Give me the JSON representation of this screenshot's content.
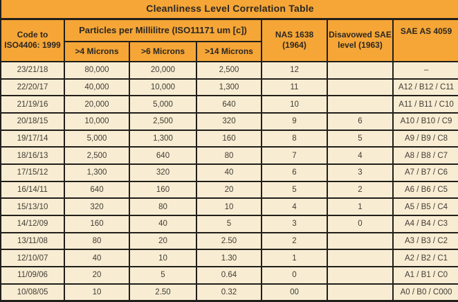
{
  "title": "Cleanliness Level Correlation Table",
  "colors": {
    "header_bg": "#f5a637",
    "row_bg": "#f8edd3",
    "border": "#211e1a",
    "header_text": "#2c2722",
    "body_text": "#423c33"
  },
  "header": {
    "code": "Code to\nISO4406: 1999",
    "particles_group": "Particles per Millilitre (ISO11171 um [c])",
    "sub": [
      ">4 Microns",
      ">6 Microns",
      ">14 Microns"
    ],
    "nas": "NAS 1638\n(1964)",
    "sae_level": "Disavowed SAE\nlevel (1963)",
    "sae_as4059": "SAE AS 4059"
  },
  "chart_data": {
    "type": "table",
    "title": "Cleanliness Level Correlation Table",
    "columns": [
      "Code to ISO4406: 1999",
      ">4 Microns",
      ">6 Microns",
      ">14 Microns",
      "NAS 1638 (1964)",
      "Disavowed SAE level (1963)",
      "SAE AS 4059"
    ],
    "column_group": {
      "label": "Particles per Millilitre (ISO11171 um [c])",
      "spans_columns": [
        ">4 Microns",
        ">6 Microns",
        ">14 Microns"
      ]
    },
    "rows": [
      {
        "code": "23/21/18",
        "p4": "80,000",
        "p6": "20,000",
        "p14": "2,500",
        "nas": "12",
        "sae_level": "",
        "sae4059": "–"
      },
      {
        "code": "22/20/17",
        "p4": "40,000",
        "p6": "10,000",
        "p14": "1,300",
        "nas": "11",
        "sae_level": "",
        "sae4059": "A12 / B12 / C11"
      },
      {
        "code": "21/19/16",
        "p4": "20,000",
        "p6": "5,000",
        "p14": "640",
        "nas": "10",
        "sae_level": "",
        "sae4059": "A11 / B11 / C10"
      },
      {
        "code": "20/18/15",
        "p4": "10,000",
        "p6": "2,500",
        "p14": "320",
        "nas": "9",
        "sae_level": "6",
        "sae4059": "A10 / B10 / C9"
      },
      {
        "code": "19/17/14",
        "p4": "5,000",
        "p6": "1,300",
        "p14": "160",
        "nas": "8",
        "sae_level": "5",
        "sae4059": "A9 / B9 / C8"
      },
      {
        "code": "18/16/13",
        "p4": "2,500",
        "p6": "640",
        "p14": "80",
        "nas": "7",
        "sae_level": "4",
        "sae4059": "A8 / B8 / C7"
      },
      {
        "code": "17/15/12",
        "p4": "1,300",
        "p6": "320",
        "p14": "40",
        "nas": "6",
        "sae_level": "3",
        "sae4059": "A7 / B7 / C6"
      },
      {
        "code": "16/14/11",
        "p4": "640",
        "p6": "160",
        "p14": "20",
        "nas": "5",
        "sae_level": "2",
        "sae4059": "A6 / B6 / C5"
      },
      {
        "code": "15/13/10",
        "p4": "320",
        "p6": "80",
        "p14": "10",
        "nas": "4",
        "sae_level": "1",
        "sae4059": "A5 / B5 / C4"
      },
      {
        "code": "14/12/09",
        "p4": "160",
        "p6": "40",
        "p14": "5",
        "nas": "3",
        "sae_level": "0",
        "sae4059": "A4 / B4 / C3"
      },
      {
        "code": "13/11/08",
        "p4": "80",
        "p6": "20",
        "p14": "2.50",
        "nas": "2",
        "sae_level": "",
        "sae4059": "A3 / B3 / C2"
      },
      {
        "code": "12/10/07",
        "p4": "40",
        "p6": "10",
        "p14": "1.30",
        "nas": "1",
        "sae_level": "",
        "sae4059": "A2 / B2 / C1"
      },
      {
        "code": "11/09/06",
        "p4": "20",
        "p6": "5",
        "p14": "0.64",
        "nas": "0",
        "sae_level": "",
        "sae4059": "A1 / B1 / C0"
      },
      {
        "code": "10/08/05",
        "p4": "10",
        "p6": "2.50",
        "p14": "0.32",
        "nas": "00",
        "sae_level": "",
        "sae4059": "A0 / B0 / C000"
      }
    ]
  }
}
